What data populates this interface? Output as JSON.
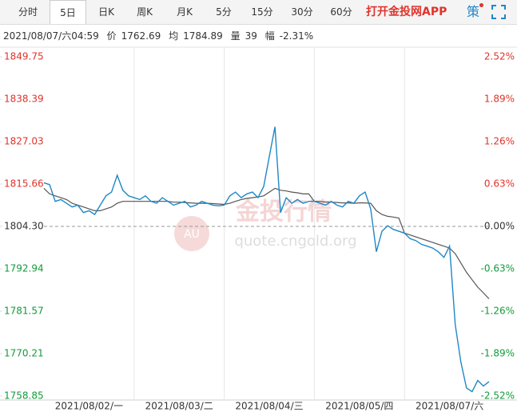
{
  "toolbar": {
    "tabs": [
      "分时",
      "5日",
      "日K",
      "周K",
      "月K",
      "5分",
      "15分",
      "30分",
      "60分"
    ],
    "active": 1,
    "app_link": "打开金投网APP",
    "strategy": "策"
  },
  "info": {
    "time": "2021/08/07/六04:59",
    "items": [
      {
        "label": "价",
        "value": "1762.69"
      },
      {
        "label": "均",
        "value": "1784.89"
      },
      {
        "label": "量",
        "value": "39"
      },
      {
        "label": "幅",
        "value": "-2.31%"
      }
    ]
  },
  "watermark": {
    "title": "金投行情",
    "url": "quote.cngold.org",
    "badge": "AU"
  },
  "chart_data": {
    "type": "line",
    "categories": [
      null,
      null,
      null,
      null,
      null,
      null,
      null,
      null,
      "2021/08/02/一",
      null,
      null,
      null,
      null,
      null,
      null,
      null,
      null,
      null,
      null,
      null,
      null,
      null,
      null,
      null,
      "2021/08/03/二",
      null,
      null,
      null,
      null,
      null,
      null,
      null,
      null,
      null,
      null,
      null,
      null,
      null,
      null,
      null,
      "2021/08/04/三",
      null,
      null,
      null,
      null,
      null,
      null,
      null,
      null,
      null,
      null,
      null,
      null,
      null,
      null,
      null,
      "2021/08/05/四",
      null,
      null,
      null,
      null,
      null,
      null,
      null,
      null,
      null,
      null,
      null,
      null,
      null,
      null,
      null,
      "2021/08/07/六",
      null,
      null,
      null,
      null,
      null,
      null,
      null
    ],
    "series": [
      {
        "name": "价",
        "color": "#1f87c8",
        "values": [
          1816.0,
          1815.5,
          1811.0,
          1811.5,
          1810.5,
          1809.5,
          1810.0,
          1808.0,
          1808.5,
          1807.5,
          1810.0,
          1812.5,
          1813.5,
          1818.0,
          1814.0,
          1812.5,
          1812.0,
          1811.5,
          1812.5,
          1811.0,
          1810.5,
          1812.0,
          1811.0,
          1810.0,
          1810.5,
          1811.0,
          1809.5,
          1810.0,
          1811.0,
          1810.5,
          1810.0,
          1809.8,
          1810.0,
          1812.5,
          1813.5,
          1812.0,
          1813.0,
          1813.5,
          1812.0,
          1815.0,
          1823.0,
          1831.0,
          1808.0,
          1812.0,
          1810.5,
          1811.5,
          1810.5,
          1811.0,
          1811.0,
          1810.5,
          1810.0,
          1811.0,
          1810.0,
          1809.5,
          1811.0,
          1810.5,
          1812.5,
          1813.5,
          1809.0,
          1797.5,
          1803.0,
          1804.5,
          1803.5,
          1803.0,
          1802.5,
          1801.0,
          1800.5,
          1799.5,
          1799.0,
          1798.5,
          1797.5,
          1796.0,
          1799.0,
          1778.0,
          1768.0,
          1761.0,
          1760.0,
          1763.0,
          1761.5,
          1762.69
        ]
      },
      {
        "name": "均",
        "color": "#555555",
        "values": [
          1814.5,
          1813.0,
          1812.5,
          1812.0,
          1811.5,
          1810.5,
          1810.0,
          1809.5,
          1809.0,
          1808.5,
          1808.5,
          1809.0,
          1809.5,
          1810.5,
          1811.0,
          1811.0,
          1811.0,
          1811.0,
          1811.0,
          1811.0,
          1811.0,
          1811.0,
          1811.0,
          1810.8,
          1810.8,
          1810.7,
          1810.6,
          1810.5,
          1810.5,
          1810.5,
          1810.4,
          1810.3,
          1810.2,
          1810.5,
          1811.0,
          1811.5,
          1811.8,
          1812.0,
          1812.2,
          1812.5,
          1813.5,
          1814.5,
          1814.0,
          1813.8,
          1813.5,
          1813.3,
          1813.0,
          1813.0,
          1811.0,
          1811.0,
          1810.8,
          1810.8,
          1810.7,
          1810.6,
          1810.6,
          1810.5,
          1810.6,
          1810.6,
          1810.5,
          1808.5,
          1807.5,
          1807.0,
          1806.8,
          1806.5,
          1802.5,
          1802.0,
          1801.5,
          1801.0,
          1800.5,
          1800.0,
          1799.5,
          1799.0,
          1798.5,
          1797.0,
          1794.5,
          1792.0,
          1790.0,
          1788.0,
          1786.5,
          1784.89
        ]
      }
    ],
    "ylim": [
      1758.85,
      1849.75
    ],
    "yticks": [
      1849.75,
      1838.39,
      1827.03,
      1815.66,
      {
        "value": 1804.3,
        "label": "1804.30"
      },
      1792.94,
      1781.57,
      1770.21,
      1758.85
    ],
    "y2lim": [
      -2.52,
      2.52
    ],
    "y2ticks": [
      {
        "value": 2.52,
        "label": "2.52%"
      },
      {
        "value": 1.89,
        "label": "1.89%"
      },
      {
        "value": 1.26,
        "label": "1.26%"
      },
      {
        "value": 0.63,
        "label": "0.63%"
      },
      {
        "value": 0.0,
        "label": "0.00%"
      },
      {
        "value": -0.63,
        "label": "-0.63%"
      },
      {
        "value": -1.26,
        "label": "-1.26%"
      },
      {
        "value": -1.89,
        "label": "-1.89%"
      },
      {
        "value": -2.52,
        "label": "-2.52%"
      }
    ],
    "up_color": "#e0332b",
    "down_color": "#139a3b"
  }
}
